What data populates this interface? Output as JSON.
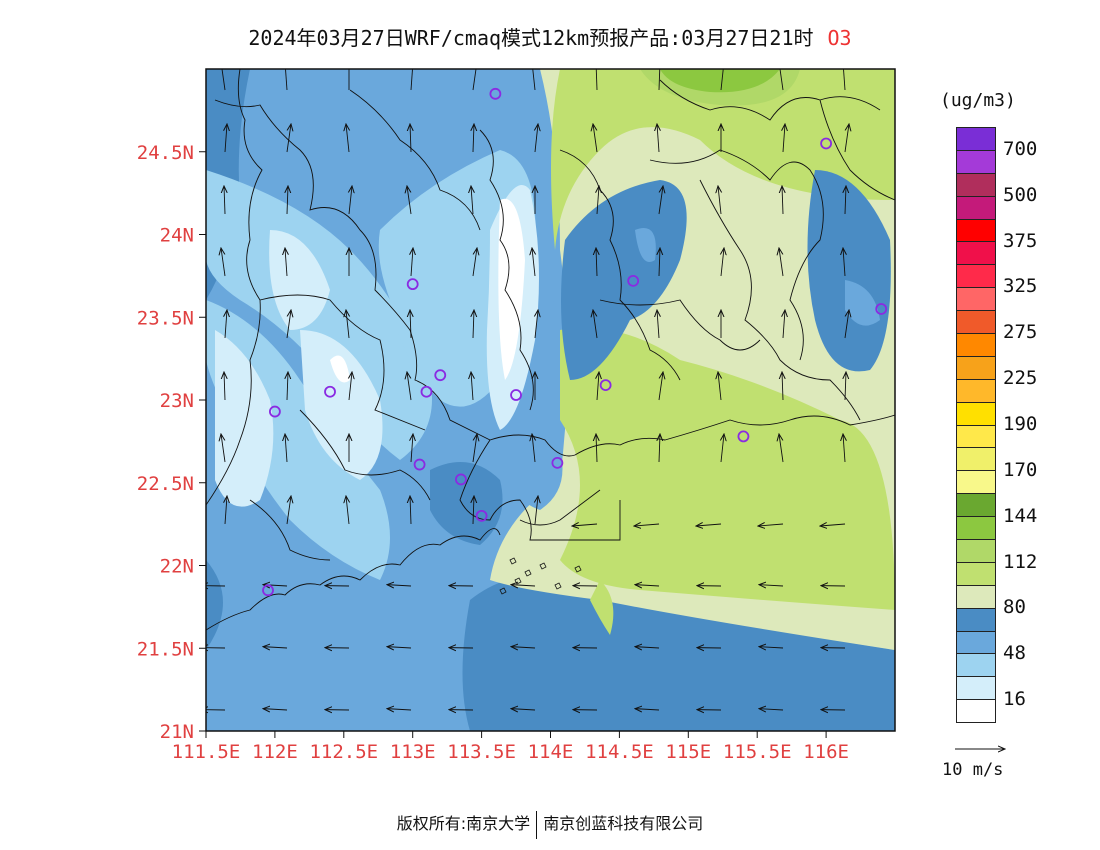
{
  "title": {
    "text": "2024年03月27日WRF/cmaq模式12km预报产品:03月27日21时",
    "species": "O3"
  },
  "axes": {
    "lat_labels": [
      "24.5N",
      "24N",
      "23.5N",
      "23N",
      "22.5N",
      "22N",
      "21.5N",
      "21N"
    ],
    "lon_labels": [
      "111.5E",
      "112E",
      "112.5E",
      "113E",
      "113.5E",
      "114E",
      "114.5E",
      "115E",
      "115.5E",
      "116E"
    ],
    "label_color": "#e04040"
  },
  "colorbar": {
    "unit": "(ug/m3)",
    "labels": [
      "700",
      "500",
      "375",
      "325",
      "275",
      "225",
      "190",
      "170",
      "144",
      "112",
      "80",
      "48",
      "16"
    ],
    "colors_top_to_bottom": [
      "#7a2ed6",
      "#a43ad8",
      "#b02e5c",
      "#c41a7a",
      "#ff0000",
      "#f0104a",
      "#ff2a4a",
      "#ff6666",
      "#f05a2a",
      "#ff8800",
      "#f7a21a",
      "#ffb82a",
      "#ffe000",
      "#ffe84a",
      "#f0f06a",
      "#f8f88a",
      "#6aa830",
      "#8cc840",
      "#b0d868",
      "#c0e070",
      "#dde9bb",
      "#4a8cc4",
      "#6aa8dc",
      "#9dd3f0",
      "#d4eefa",
      "#ffffff"
    ]
  },
  "vector_ref": {
    "label": "10 m/s"
  },
  "footer": {
    "left": "版权所有:南京大学",
    "right": "南京创蓝科技有限公司"
  },
  "fill_colors": {
    "c16": "#d4eefa",
    "c48": "#9dd3f0",
    "c64": "#6aa8dc",
    "c80": "#4a8cc4",
    "c96": "#dde9bb",
    "c112": "#c0e070",
    "c128": "#b0d868",
    "c144": "#8cc840",
    "c160": "#6aa830"
  },
  "map_content": {
    "extent": {
      "lon": [
        111.5,
        116.5
      ],
      "lat": [
        21,
        25
      ]
    },
    "stations": [
      {
        "lon": 113.6,
        "lat": 24.85
      },
      {
        "lon": 116.0,
        "lat": 24.55
      },
      {
        "lon": 113.0,
        "lat": 23.7
      },
      {
        "lon": 114.6,
        "lat": 23.72
      },
      {
        "lon": 116.4,
        "lat": 23.55
      },
      {
        "lon": 113.2,
        "lat": 23.15
      },
      {
        "lon": 112.4,
        "lat": 23.05
      },
      {
        "lon": 113.1,
        "lat": 23.05
      },
      {
        "lon": 113.75,
        "lat": 23.03
      },
      {
        "lon": 114.4,
        "lat": 23.09
      },
      {
        "lon": 112.0,
        "lat": 22.93
      },
      {
        "lon": 115.4,
        "lat": 22.78
      },
      {
        "lon": 113.05,
        "lat": 22.61
      },
      {
        "lon": 114.05,
        "lat": 22.62
      },
      {
        "lon": 113.35,
        "lat": 22.52
      },
      {
        "lon": 113.5,
        "lat": 22.3
      },
      {
        "lon": 111.95,
        "lat": 21.85
      }
    ],
    "station_color": "#8a2be2"
  }
}
